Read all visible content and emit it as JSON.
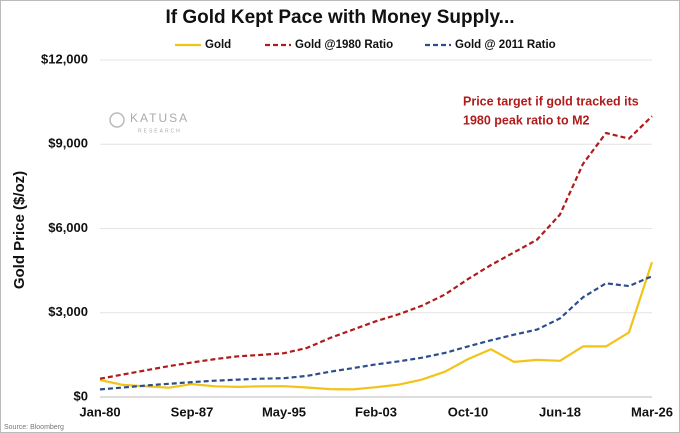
{
  "chart_data": {
    "type": "line",
    "title": "If Gold Kept Pace with Money Supply...",
    "y_label": "Gold Price ($/oz)",
    "annotation": [
      "Price target if gold tracked its",
      "1980 peak ratio to M2"
    ],
    "watermark": [
      "KATUSA",
      "RESEARCH"
    ],
    "source": "Source: Bloomberg",
    "categories": [
      "Jan-80",
      null,
      null,
      null,
      "Sep-87",
      null,
      null,
      null,
      "May-95",
      null,
      null,
      null,
      "Feb-03",
      null,
      null,
      null,
      "Oct-10",
      null,
      null,
      null,
      "Jun-18",
      null,
      null,
      null,
      "Mar-26"
    ],
    "series": [
      {
        "name": "Gold",
        "color": "#f2c318",
        "dash": false,
        "values": [
          600,
          430,
          380,
          330,
          460,
          380,
          360,
          380,
          385,
          340,
          280,
          270,
          350,
          440,
          620,
          900,
          1350,
          1700,
          1250,
          1320,
          1290,
          1800,
          1800,
          2300,
          4800
        ]
      },
      {
        "name": "Gold @1980 Ratio",
        "color": "#b01c1c",
        "dash": true,
        "values": [
          650,
          800,
          950,
          1100,
          1230,
          1350,
          1450,
          1500,
          1560,
          1750,
          2100,
          2400,
          2700,
          2950,
          3250,
          3650,
          4200,
          4700,
          5150,
          5600,
          6500,
          8300,
          9400,
          9200,
          10000
        ]
      },
      {
        "name": "Gold @ 2011 Ratio",
        "color": "#2c4f8c",
        "dash": true,
        "values": [
          270,
          340,
          410,
          470,
          530,
          580,
          620,
          650,
          670,
          750,
          900,
          1030,
          1160,
          1270,
          1400,
          1570,
          1800,
          2020,
          2220,
          2400,
          2800,
          3550,
          4050,
          3950,
          4300
        ]
      }
    ],
    "ylim": [
      0,
      12000
    ],
    "yticks": [
      {
        "value": 0,
        "label": "$0"
      },
      {
        "value": 3000,
        "label": "$3,000"
      },
      {
        "value": 6000,
        "label": "$6,000"
      },
      {
        "value": 9000,
        "label": "$9,000"
      },
      {
        "value": 12000,
        "label": "$12,000"
      }
    ],
    "grid": true
  }
}
